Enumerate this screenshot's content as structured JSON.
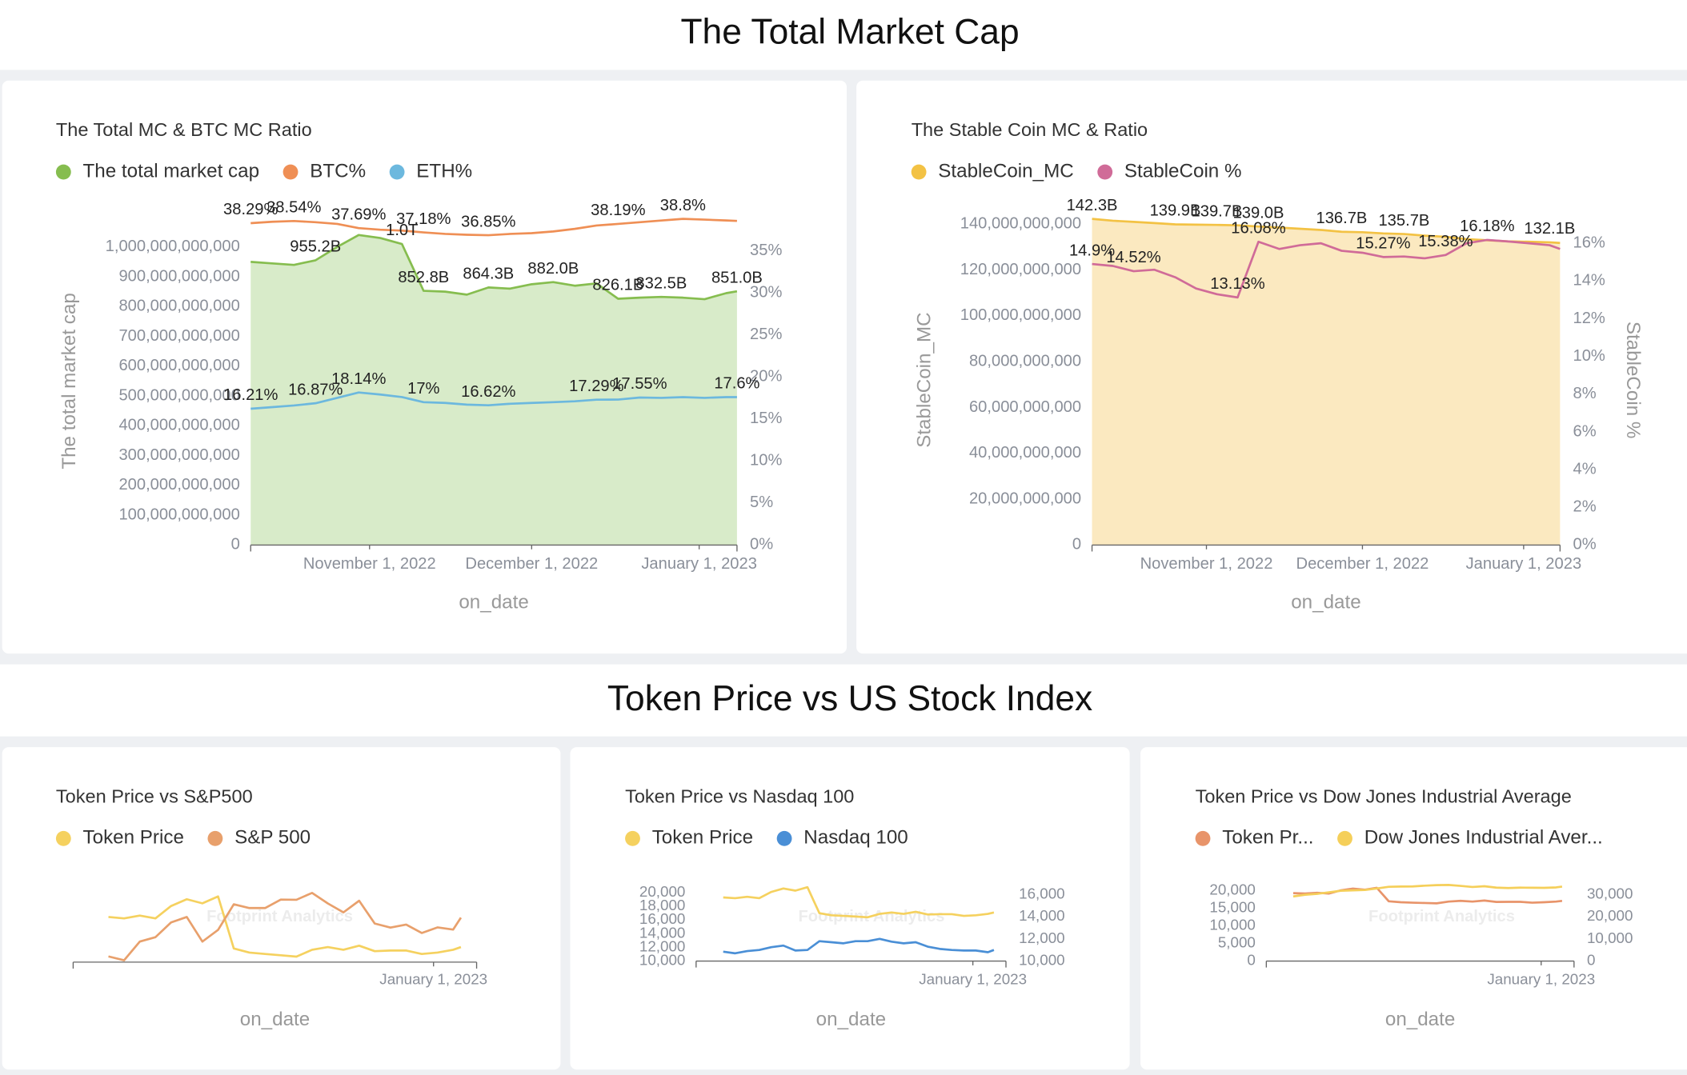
{
  "sections": [
    {
      "title": "The Total Market Cap"
    },
    {
      "title": "Token Price vs US Stock Index"
    }
  ],
  "watermark": "Footprint Analytics",
  "chart_data": [
    {
      "type": "line",
      "title": "The Total MC & BTC MC Ratio",
      "xlabel": "on_date",
      "ylabel": "The total market cap",
      "x": [
        "2022-10-10",
        "2022-10-14",
        "2022-10-18",
        "2022-10-22",
        "2022-10-26",
        "2022-10-30",
        "2022-11-03",
        "2022-11-07",
        "2022-11-11",
        "2022-11-15",
        "2022-11-19",
        "2022-11-23",
        "2022-11-27",
        "2022-12-01",
        "2022-12-05",
        "2022-12-09",
        "2022-12-13",
        "2022-12-17",
        "2022-12-21",
        "2022-12-25",
        "2022-12-29",
        "2023-01-02",
        "2023-01-06",
        "2023-01-08"
      ],
      "xlim": [
        "2022-10-10",
        "2023-01-08"
      ],
      "xticks": [
        {
          "value": "2022-11-01",
          "label": "November 1, 2022"
        },
        {
          "value": "2022-12-01",
          "label": "December 1, 2022"
        },
        {
          "value": "2023-01-01",
          "label": "January 1, 2023"
        }
      ],
      "ylim": [
        0,
        1100000000000
      ],
      "yticks": [
        0,
        {
          "value": 100000000000,
          "label": "100,000,000,000"
        },
        {
          "value": 200000000000,
          "label": "200,000,000,000"
        },
        {
          "value": 300000000000,
          "label": "300,000,000,000"
        },
        {
          "value": 400000000000,
          "label": "400,000,000,000"
        },
        {
          "value": 500000000000,
          "label": "500,000,000,000"
        },
        {
          "value": 600000000000,
          "label": "600,000,000,000"
        },
        {
          "value": 700000000000,
          "label": "700,000,000,000"
        },
        {
          "value": 800000000000,
          "label": "800,000,000,000"
        },
        {
          "value": 900000000000,
          "label": "900,000,000,000"
        },
        {
          "value": 1000000000000,
          "label": "1,000,000,000,000"
        }
      ],
      "y2lim": [
        0,
        39
      ],
      "y2ticks": [
        {
          "value": 0,
          "label": "0%"
        },
        {
          "value": 5,
          "label": "5%"
        },
        {
          "value": 10,
          "label": "10%"
        },
        {
          "value": 15,
          "label": "15%"
        },
        {
          "value": 20,
          "label": "20%"
        },
        {
          "value": 25,
          "label": "25%"
        },
        {
          "value": 30,
          "label": "30%"
        },
        {
          "value": 35,
          "label": "35%"
        }
      ],
      "grid": false,
      "series": [
        {
          "name": "The total market cap",
          "color": "#86bd4f",
          "fill": "#d8ebc9",
          "area": true,
          "values": [
            950000000000,
            945000000000,
            940000000000,
            955200000000,
            1000000000000,
            1040000000000,
            1030000000000,
            1010000000000,
            852800000000,
            850000000000,
            840000000000,
            864300000000,
            860000000000,
            875000000000,
            882000000000,
            870000000000,
            878000000000,
            826100000000,
            830000000000,
            832500000000,
            830000000000,
            825000000000,
            845000000000,
            851000000000
          ],
          "value_labels": [
            null,
            null,
            null,
            "955.2B",
            null,
            null,
            null,
            "1.0T",
            "852.8B",
            null,
            null,
            "864.3B",
            null,
            null,
            "882.0B",
            null,
            null,
            "826.1B",
            null,
            "832.5B",
            null,
            null,
            null,
            "851.0B"
          ]
        },
        {
          "name": "BTC%",
          "color": "#ef8f55",
          "axis": "y2",
          "values": [
            38.29,
            38.45,
            38.54,
            38.4,
            38.2,
            37.69,
            37.5,
            37.4,
            37.18,
            37.0,
            36.9,
            36.85,
            37.0,
            37.1,
            37.3,
            37.6,
            38.0,
            38.19,
            38.4,
            38.6,
            38.8,
            38.7,
            38.6,
            38.55
          ],
          "value_labels": [
            "38.29%",
            null,
            "38.54%",
            null,
            null,
            "37.69%",
            null,
            null,
            "37.18%",
            null,
            null,
            "36.85%",
            null,
            null,
            null,
            null,
            null,
            "38.19%",
            null,
            null,
            "38.8%",
            null,
            null,
            null
          ]
        },
        {
          "name": "ETH%",
          "color": "#6cb8de",
          "axis": "y2",
          "values": [
            16.21,
            16.4,
            16.6,
            16.87,
            17.5,
            18.14,
            17.9,
            17.6,
            17.0,
            16.9,
            16.7,
            16.62,
            16.8,
            16.9,
            17.0,
            17.1,
            17.29,
            17.3,
            17.55,
            17.5,
            17.6,
            17.5,
            17.6,
            17.6
          ],
          "value_labels": [
            "16.21%",
            null,
            null,
            "16.87%",
            null,
            "18.14%",
            null,
            null,
            "17%",
            null,
            null,
            "16.62%",
            null,
            null,
            null,
            null,
            "17.29%",
            null,
            "17.55%",
            null,
            null,
            null,
            null,
            "17.6%"
          ]
        }
      ]
    },
    {
      "type": "line",
      "title": "The Stable Coin MC & Ratio",
      "xlabel": "on_date",
      "ylabel": "StableCoin_MC",
      "y2label": "StableCoin %",
      "x": [
        "2022-10-10",
        "2022-10-14",
        "2022-10-18",
        "2022-10-22",
        "2022-10-26",
        "2022-10-30",
        "2022-11-03",
        "2022-11-07",
        "2022-11-11",
        "2022-11-15",
        "2022-11-19",
        "2022-11-23",
        "2022-11-27",
        "2022-12-01",
        "2022-12-05",
        "2022-12-09",
        "2022-12-13",
        "2022-12-17",
        "2022-12-21",
        "2022-12-25",
        "2022-12-29",
        "2023-01-02",
        "2023-01-06",
        "2023-01-08"
      ],
      "xlim": [
        "2022-10-10",
        "2023-01-08"
      ],
      "xticks": [
        {
          "value": "2022-11-01",
          "label": "November 1, 2022"
        },
        {
          "value": "2022-12-01",
          "label": "December 1, 2022"
        },
        {
          "value": "2023-01-01",
          "label": "January 1, 2023"
        }
      ],
      "ylim": [
        0,
        144000000000
      ],
      "yticks": [
        0,
        {
          "value": 20000000000,
          "label": "20,000,000,000"
        },
        {
          "value": 40000000000,
          "label": "40,000,000,000"
        },
        {
          "value": 60000000000,
          "label": "60,000,000,000"
        },
        {
          "value": 80000000000,
          "label": "80,000,000,000"
        },
        {
          "value": 100000000000,
          "label": "100,000,000,000"
        },
        {
          "value": 120000000000,
          "label": "120,000,000,000"
        },
        {
          "value": 140000000000,
          "label": "140,000,000,000"
        }
      ],
      "y2lim": [
        0,
        17.5
      ],
      "y2ticks": [
        {
          "value": 0,
          "label": "0%"
        },
        {
          "value": 2,
          "label": "2%"
        },
        {
          "value": 4,
          "label": "4%"
        },
        {
          "value": 6,
          "label": "6%"
        },
        {
          "value": 8,
          "label": "8%"
        },
        {
          "value": 10,
          "label": "10%"
        },
        {
          "value": 12,
          "label": "12%"
        },
        {
          "value": 14,
          "label": "14%"
        },
        {
          "value": 16,
          "label": "16%"
        }
      ],
      "grid": false,
      "series": [
        {
          "name": "StableCoin_MC",
          "color": "#f3c244",
          "fill": "#fbe9c0",
          "area": true,
          "values": [
            142300000000,
            141500000000,
            141000000000,
            140500000000,
            139900000000,
            139800000000,
            139700000000,
            139500000000,
            139000000000,
            138500000000,
            138000000000,
            137500000000,
            136700000000,
            136500000000,
            136000000000,
            135700000000,
            135000000000,
            134500000000,
            133500000000,
            133000000000,
            132500000000,
            132300000000,
            132100000000,
            131800000000
          ],
          "value_labels": [
            "142.3B",
            null,
            null,
            null,
            "139.9B",
            null,
            "139.7B",
            null,
            "139.0B",
            null,
            null,
            null,
            "136.7B",
            null,
            null,
            "135.7B",
            null,
            null,
            null,
            null,
            null,
            null,
            "132.1B",
            null
          ]
        },
        {
          "name": "StableCoin %",
          "color": "#d06b98",
          "axis": "y2",
          "values": [
            14.9,
            14.8,
            14.52,
            14.6,
            14.2,
            13.6,
            13.3,
            13.13,
            16.08,
            15.7,
            15.9,
            16.0,
            15.6,
            15.5,
            15.27,
            15.3,
            15.2,
            15.38,
            16.0,
            16.18,
            16.1,
            16.0,
            15.9,
            15.7
          ],
          "value_labels": [
            "14.9%",
            null,
            "14.52%",
            null,
            null,
            null,
            null,
            "13.13%",
            "16.08%",
            null,
            null,
            null,
            null,
            null,
            "15.27%",
            null,
            null,
            "15.38%",
            null,
            "16.18%",
            null,
            null,
            null,
            null
          ]
        }
      ]
    },
    {
      "type": "line",
      "title": "Token Price vs S&P500",
      "xlabel": "on_date",
      "x": [
        "2022-10-10",
        "2022-10-14",
        "2022-10-18",
        "2022-10-22",
        "2022-10-26",
        "2022-10-30",
        "2022-11-03",
        "2022-11-07",
        "2022-11-11",
        "2022-11-15",
        "2022-11-19",
        "2022-11-23",
        "2022-11-27",
        "2022-12-01",
        "2022-12-05",
        "2022-12-09",
        "2022-12-13",
        "2022-12-17",
        "2022-12-21",
        "2022-12-25",
        "2022-12-29",
        "2023-01-02",
        "2023-01-06",
        "2023-01-08"
      ],
      "xlim": [
        "2022-10-01",
        "2023-01-12"
      ],
      "xticks": [
        {
          "value": "2023-01-01",
          "label": "January 1, 2023"
        }
      ],
      "ylim": [
        16000,
        21500
      ],
      "y2lim": [
        3570,
        4120
      ],
      "grid": false,
      "series": [
        {
          "name": "Token Price",
          "color": "#f5d15f",
          "values": [
            19300,
            19200,
            19400,
            19200,
            20100,
            20600,
            20300,
            20800,
            17000,
            16700,
            16600,
            16500,
            16400,
            16900,
            17100,
            16900,
            17200,
            16800,
            16850,
            16850,
            16600,
            16700,
            16900,
            17100
          ]
        },
        {
          "name": "S&P 500",
          "color": "#e8a06c",
          "axis": "y2",
          "values": [
            3612,
            3583,
            3720,
            3752,
            3860,
            3900,
            3720,
            3806,
            3993,
            3965,
            3965,
            4027,
            4026,
            4076,
            3999,
            3934,
            4019,
            3852,
            3822,
            3844,
            3783,
            3824,
            3808,
            3895
          ]
        }
      ]
    },
    {
      "type": "line",
      "title": "Token Price vs Nasdaq 100",
      "xlabel": "on_date",
      "x": [
        "2022-10-10",
        "2022-10-14",
        "2022-10-18",
        "2022-10-22",
        "2022-10-26",
        "2022-10-30",
        "2022-11-03",
        "2022-11-07",
        "2022-11-11",
        "2022-11-15",
        "2022-11-19",
        "2022-11-23",
        "2022-11-27",
        "2022-12-01",
        "2022-12-05",
        "2022-12-09",
        "2022-12-13",
        "2022-12-17",
        "2022-12-21",
        "2022-12-25",
        "2022-12-29",
        "2023-01-02",
        "2023-01-06",
        "2023-01-08"
      ],
      "xlim": [
        "2022-10-01",
        "2023-01-12"
      ],
      "xticks": [
        {
          "value": "2023-01-01",
          "label": "January 1, 2023"
        }
      ],
      "ylim": [
        10000,
        21000
      ],
      "yticks": [
        {
          "value": 10000,
          "label": "10,000"
        },
        {
          "value": 12000,
          "label": "12,000"
        },
        {
          "value": 14000,
          "label": "14,000"
        },
        {
          "value": 16000,
          "label": "16,000"
        },
        {
          "value": 18000,
          "label": "18,000"
        },
        {
          "value": 20000,
          "label": "20,000"
        }
      ],
      "y2lim": [
        10000,
        16800
      ],
      "y2ticks": [
        {
          "value": 10000,
          "label": "10,000"
        },
        {
          "value": 12000,
          "label": "12,000"
        },
        {
          "value": 14000,
          "label": "14,000"
        },
        {
          "value": 16000,
          "label": "16,000"
        }
      ],
      "grid": false,
      "series": [
        {
          "name": "Token Price",
          "color": "#f5d15f",
          "values": [
            19300,
            19200,
            19400,
            19200,
            20100,
            20600,
            20300,
            20800,
            17000,
            16700,
            16600,
            16500,
            16400,
            16900,
            17100,
            16900,
            17200,
            16800,
            16850,
            16850,
            16600,
            16700,
            16900,
            17100
          ]
        },
        {
          "name": "Nasdaq 100",
          "color": "#4a8fd6",
          "axis": "y2",
          "values": [
            10850,
            10700,
            10900,
            11000,
            11250,
            11400,
            10950,
            11000,
            11800,
            11700,
            11600,
            11800,
            11800,
            12000,
            11750,
            11600,
            11700,
            11300,
            11100,
            11000,
            10950,
            10950,
            10800,
            11000
          ]
        }
      ]
    },
    {
      "type": "line",
      "title": "Token Price vs Dow Jones Industrial Average",
      "xlabel": "on_date",
      "x": [
        "2022-10-10",
        "2022-10-14",
        "2022-10-18",
        "2022-10-22",
        "2022-10-26",
        "2022-10-30",
        "2022-11-03",
        "2022-11-07",
        "2022-11-11",
        "2022-11-15",
        "2022-11-19",
        "2022-11-23",
        "2022-11-27",
        "2022-12-01",
        "2022-12-05",
        "2022-12-09",
        "2022-12-13",
        "2022-12-17",
        "2022-12-21",
        "2022-12-25",
        "2022-12-29",
        "2023-01-02",
        "2023-01-06",
        "2023-01-08"
      ],
      "xlim": [
        "2022-10-01",
        "2023-01-12"
      ],
      "xticks": [
        {
          "value": "2023-01-01",
          "label": "January 1, 2023"
        }
      ],
      "ylim": [
        0,
        22000
      ],
      "yticks": [
        0,
        {
          "value": 5000,
          "label": "5,000"
        },
        {
          "value": 10000,
          "label": "10,000"
        },
        {
          "value": 15000,
          "label": "15,000"
        },
        {
          "value": 20000,
          "label": "20,000"
        }
      ],
      "y2lim": [
        0,
        35000
      ],
      "y2ticks": [
        0,
        {
          "value": 10000,
          "label": "10,000"
        },
        {
          "value": 20000,
          "label": "20,000"
        },
        {
          "value": 30000,
          "label": "30,000"
        }
      ],
      "grid": false,
      "series": [
        {
          "name": "Token Pr...",
          "color": "#e8946a",
          "values": [
            19300,
            19200,
            19400,
            19200,
            20100,
            20600,
            20300,
            20800,
            17000,
            16700,
            16600,
            16500,
            16400,
            16900,
            17100,
            16900,
            17200,
            16800,
            16850,
            16850,
            16600,
            16700,
            16900,
            17100
          ]
        },
        {
          "name": "Dow Jones Industrial Aver...",
          "color": "#f5cf5a",
          "axis": "y2",
          "values": [
            29200,
            30000,
            30400,
            31100,
            31800,
            32000,
            32150,
            32800,
            33600,
            33700,
            33750,
            34100,
            34300,
            34400,
            34000,
            33500,
            33850,
            33200,
            33000,
            33200,
            33150,
            33100,
            33300,
            33700
          ]
        }
      ]
    }
  ]
}
